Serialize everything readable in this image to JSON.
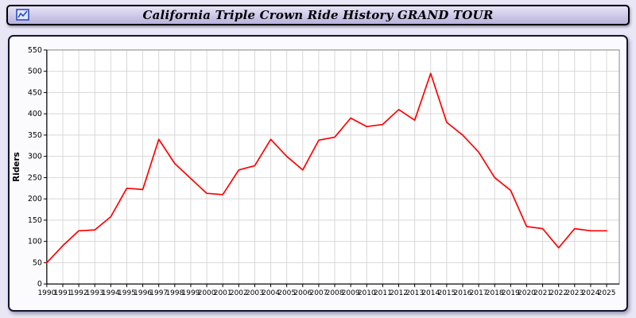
{
  "header": {
    "title": "California Triple Crown Ride History GRAND TOUR"
  },
  "chart_data": {
    "type": "line",
    "title": "California Triple Crown Ride History GRAND TOUR",
    "x": [
      1990,
      1991,
      1992,
      1993,
      1994,
      1995,
      1996,
      1997,
      1998,
      1999,
      2000,
      2001,
      2002,
      2003,
      2004,
      2005,
      2006,
      2007,
      2008,
      2009,
      2010,
      2011,
      2012,
      2013,
      2014,
      2015,
      2016,
      2017,
      2018,
      2019,
      2020,
      2021,
      2022,
      2023,
      2024,
      2025
    ],
    "series": [
      {
        "name": "Riders",
        "color": "#ff0000",
        "values": [
          50,
          90,
          125,
          127,
          158,
          225,
          222,
          340,
          283,
          248,
          213,
          210,
          268,
          278,
          340,
          300,
          268,
          338,
          345,
          390,
          370,
          375,
          410,
          385,
          495,
          380,
          350,
          310,
          250,
          220,
          135,
          130,
          85,
          130,
          125,
          125
        ]
      }
    ],
    "xlabel": "",
    "ylabel": "Riders",
    "ylim": [
      0,
      550
    ],
    "ytick_step": 50,
    "grid": true,
    "legend_position": "none",
    "colors": {
      "grid": "#d8d8d8",
      "axis": "#000000",
      "plot_border": "#8a8a8a",
      "plot_bg": "#ffffff",
      "tick_text": "#000000"
    }
  }
}
